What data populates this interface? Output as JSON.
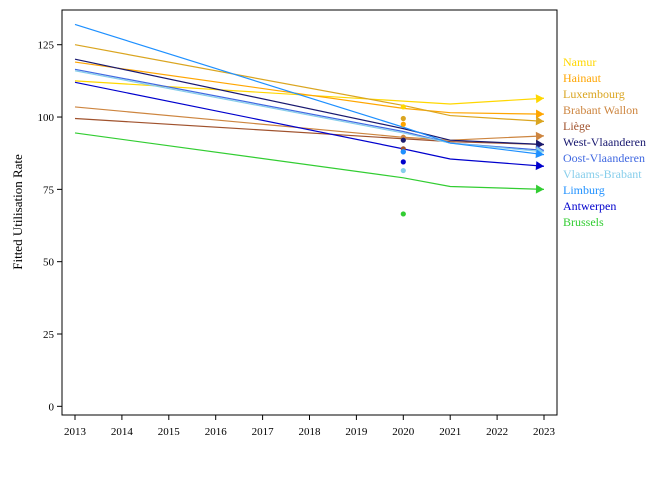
{
  "chart_data": {
    "type": "line",
    "ylabel": "Fitted Utilisation Rate",
    "xlabel": "",
    "title": "",
    "xlim": [
      2013,
      2023
    ],
    "ylim": [
      -3,
      137
    ],
    "x_ticks": [
      2013,
      2014,
      2015,
      2016,
      2017,
      2018,
      2019,
      2020,
      2021,
      2022,
      2023
    ],
    "y_ticks": [
      0,
      25,
      50,
      75,
      100,
      125
    ],
    "grid": false,
    "legend_position": "right",
    "series": [
      {
        "name": "Namur",
        "color": "#FFD700",
        "x": [
          2013,
          2020,
          2021,
          2023
        ],
        "y": [
          112.5,
          105.5,
          104.5,
          106.5
        ],
        "point_2020": 103.5
      },
      {
        "name": "Hainaut",
        "color": "#FFA500",
        "x": [
          2013,
          2020,
          2021,
          2023
        ],
        "y": [
          119,
          103,
          101.5,
          101
        ],
        "point_2020": 97.5
      },
      {
        "name": "Luxembourg",
        "color": "#DAA520",
        "x": [
          2013,
          2020,
          2021,
          2023
        ],
        "y": [
          125,
          104,
          100.5,
          98.5
        ],
        "point_2020": 99.5
      },
      {
        "name": "Brabant Wallon",
        "color": "#CD853F",
        "x": [
          2013,
          2020,
          2021,
          2023
        ],
        "y": [
          103.5,
          93,
          92,
          93.5
        ],
        "point_2020": 93
      },
      {
        "name": "Liège",
        "color": "#A0522D",
        "x": [
          2013,
          2020,
          2021,
          2023
        ],
        "y": [
          99.5,
          92.5,
          91.5,
          90.5
        ],
        "point_2020": 89
      },
      {
        "name": "West-Vlaanderen",
        "color": "#191970",
        "x": [
          2013,
          2020,
          2021,
          2023
        ],
        "y": [
          120,
          96,
          92,
          90.5
        ],
        "point_2020": 92
      },
      {
        "name": "Oost-Vlaanderen",
        "color": "#4169E1",
        "x": [
          2013,
          2020,
          2021,
          2023
        ],
        "y": [
          116.5,
          95,
          91,
          88.5
        ],
        "point_2020": 88
      },
      {
        "name": "Vlaams-Brabant",
        "color": "#87CEEB",
        "x": [
          2013,
          2020,
          2021,
          2023
        ],
        "y": [
          116,
          94.5,
          91,
          88
        ],
        "point_2020": 81.5
      },
      {
        "name": "Limburg",
        "color": "#1E90FF",
        "x": [
          2013,
          2020,
          2021,
          2023
        ],
        "y": [
          132,
          96.5,
          91,
          87
        ],
        "point_2020": 88
      },
      {
        "name": "Antwerpen",
        "color": "#0000CD",
        "x": [
          2013,
          2020,
          2021,
          2023
        ],
        "y": [
          112,
          89,
          85.5,
          83
        ],
        "point_2020": 84.5
      },
      {
        "name": "Brussels",
        "color": "#32CD32",
        "x": [
          2013,
          2020,
          2021,
          2023
        ],
        "y": [
          94.5,
          79,
          76,
          75
        ],
        "point_2020": 66.5
      }
    ]
  }
}
